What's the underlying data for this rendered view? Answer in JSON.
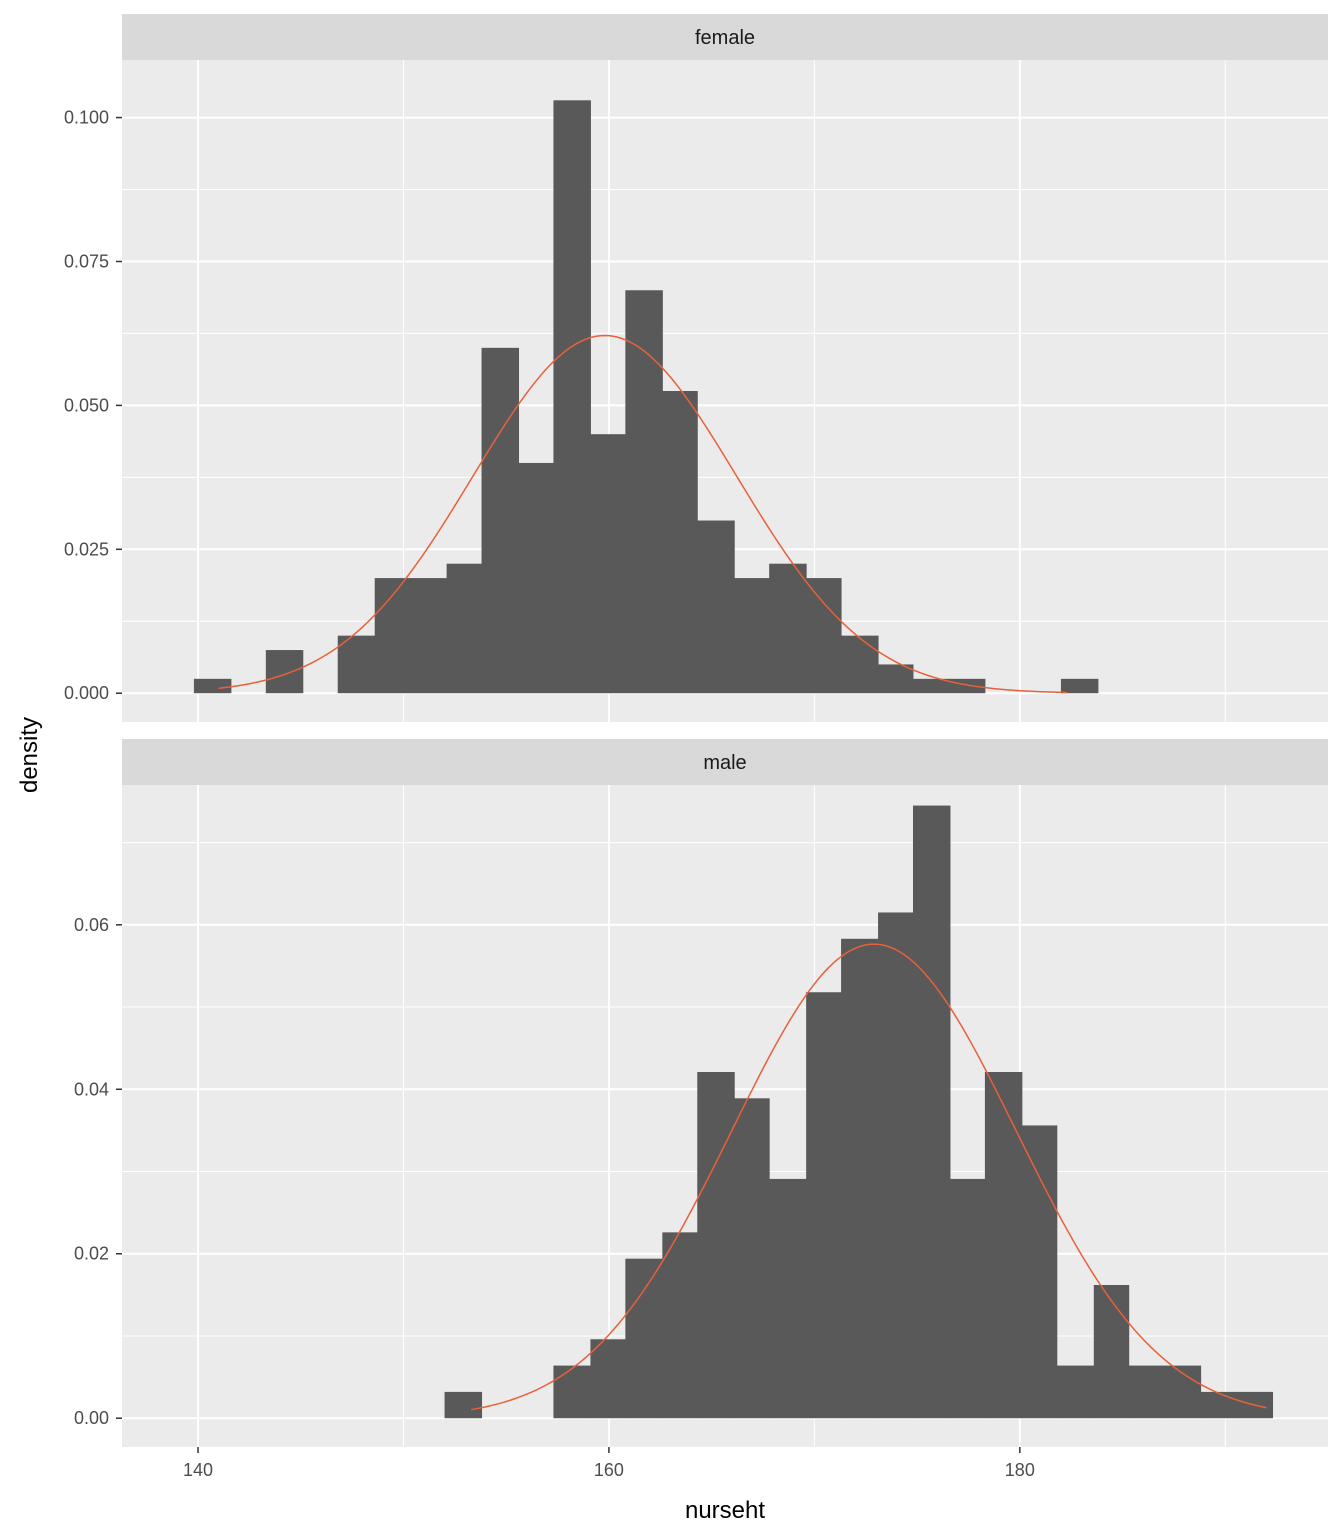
{
  "chart_data": {
    "type": "bar",
    "subtype": "faceted-histogram-with-density-curve",
    "xlabel": "nurseht",
    "ylabel": "density",
    "xlim": [
      136.3,
      195.0
    ],
    "x_ticks": [
      140,
      160,
      180
    ],
    "x_minor_ticks": [
      150,
      170,
      190
    ],
    "bin_width": 1.75,
    "colors": {
      "panel_background": "#EBEBEB",
      "strip_background": "#D9D9D9",
      "grid": "#FFFFFF",
      "bar_fill": "#595959",
      "curve": "#E8603C"
    },
    "facets": [
      {
        "label": "female",
        "ylim": [
          -0.005,
          0.11
        ],
        "y_ticks": [
          0.0,
          0.025,
          0.05,
          0.075,
          0.1
        ],
        "y_tick_labels": [
          "0.000",
          "0.025",
          "0.050",
          "0.075",
          "0.100"
        ],
        "bins": [
          {
            "x0": 139.8,
            "x1": 141.6,
            "density": 0.0025
          },
          {
            "x0": 143.3,
            "x1": 145.1,
            "density": 0.0075
          },
          {
            "x0": 146.8,
            "x1": 148.6,
            "density": 0.01
          },
          {
            "x0": 148.6,
            "x1": 150.3,
            "density": 0.02
          },
          {
            "x0": 150.3,
            "x1": 152.1,
            "density": 0.02
          },
          {
            "x0": 152.1,
            "x1": 153.8,
            "density": 0.0225
          },
          {
            "x0": 153.8,
            "x1": 155.6,
            "density": 0.06
          },
          {
            "x0": 155.6,
            "x1": 157.3,
            "density": 0.04
          },
          {
            "x0": 157.3,
            "x1": 159.1,
            "density": 0.103
          },
          {
            "x0": 159.1,
            "x1": 160.8,
            "density": 0.045
          },
          {
            "x0": 160.8,
            "x1": 162.6,
            "density": 0.07
          },
          {
            "x0": 162.6,
            "x1": 164.3,
            "density": 0.0525
          },
          {
            "x0": 164.3,
            "x1": 166.1,
            "density": 0.03
          },
          {
            "x0": 166.1,
            "x1": 167.8,
            "density": 0.02
          },
          {
            "x0": 167.8,
            "x1": 169.6,
            "density": 0.0225
          },
          {
            "x0": 169.6,
            "x1": 171.3,
            "density": 0.02
          },
          {
            "x0": 171.3,
            "x1": 173.1,
            "density": 0.01
          },
          {
            "x0": 173.1,
            "x1": 174.8,
            "density": 0.005
          },
          {
            "x0": 174.8,
            "x1": 176.6,
            "density": 0.0025
          },
          {
            "x0": 176.6,
            "x1": 178.3,
            "density": 0.0025
          },
          {
            "x0": 182.0,
            "x1": 183.8,
            "density": 0.0025
          }
        ],
        "curve": {
          "mean": 159.8,
          "sd": 6.42,
          "x_from": 141.0,
          "x_to": 182.3
        }
      },
      {
        "label": "male",
        "ylim": [
          -0.0035,
          0.077
        ],
        "y_ticks": [
          0.0,
          0.02,
          0.04,
          0.06
        ],
        "y_tick_labels": [
          "0.00",
          "0.02",
          "0.04",
          "0.06"
        ],
        "bins": [
          {
            "x0": 152.0,
            "x1": 153.8,
            "density": 0.0032
          },
          {
            "x0": 157.3,
            "x1": 159.1,
            "density": 0.0064
          },
          {
            "x0": 159.1,
            "x1": 160.8,
            "density": 0.0096
          },
          {
            "x0": 160.8,
            "x1": 162.6,
            "density": 0.0194
          },
          {
            "x0": 162.6,
            "x1": 164.3,
            "density": 0.0226
          },
          {
            "x0": 164.3,
            "x1": 166.1,
            "density": 0.0421
          },
          {
            "x0": 166.1,
            "x1": 167.8,
            "density": 0.0389
          },
          {
            "x0": 167.8,
            "x1": 169.6,
            "density": 0.0291
          },
          {
            "x0": 169.6,
            "x1": 171.3,
            "density": 0.0518
          },
          {
            "x0": 171.3,
            "x1": 173.1,
            "density": 0.0583
          },
          {
            "x0": 173.1,
            "x1": 174.8,
            "density": 0.0615
          },
          {
            "x0": 174.8,
            "x1": 176.6,
            "density": 0.0745
          },
          {
            "x0": 176.6,
            "x1": 178.3,
            "density": 0.0291
          },
          {
            "x0": 178.3,
            "x1": 180.1,
            "density": 0.0421
          },
          {
            "x0": 180.1,
            "x1": 181.8,
            "density": 0.0356
          },
          {
            "x0": 181.8,
            "x1": 183.6,
            "density": 0.0064
          },
          {
            "x0": 183.6,
            "x1": 185.3,
            "density": 0.0162
          },
          {
            "x0": 185.3,
            "x1": 187.1,
            "density": 0.0064
          },
          {
            "x0": 187.1,
            "x1": 188.8,
            "density": 0.0064
          },
          {
            "x0": 188.8,
            "x1": 190.6,
            "density": 0.0032
          },
          {
            "x0": 190.6,
            "x1": 192.3,
            "density": 0.0032
          }
        ],
        "curve": {
          "mean": 172.9,
          "sd": 6.92,
          "x_from": 153.3,
          "x_to": 192.0
        }
      }
    ]
  }
}
